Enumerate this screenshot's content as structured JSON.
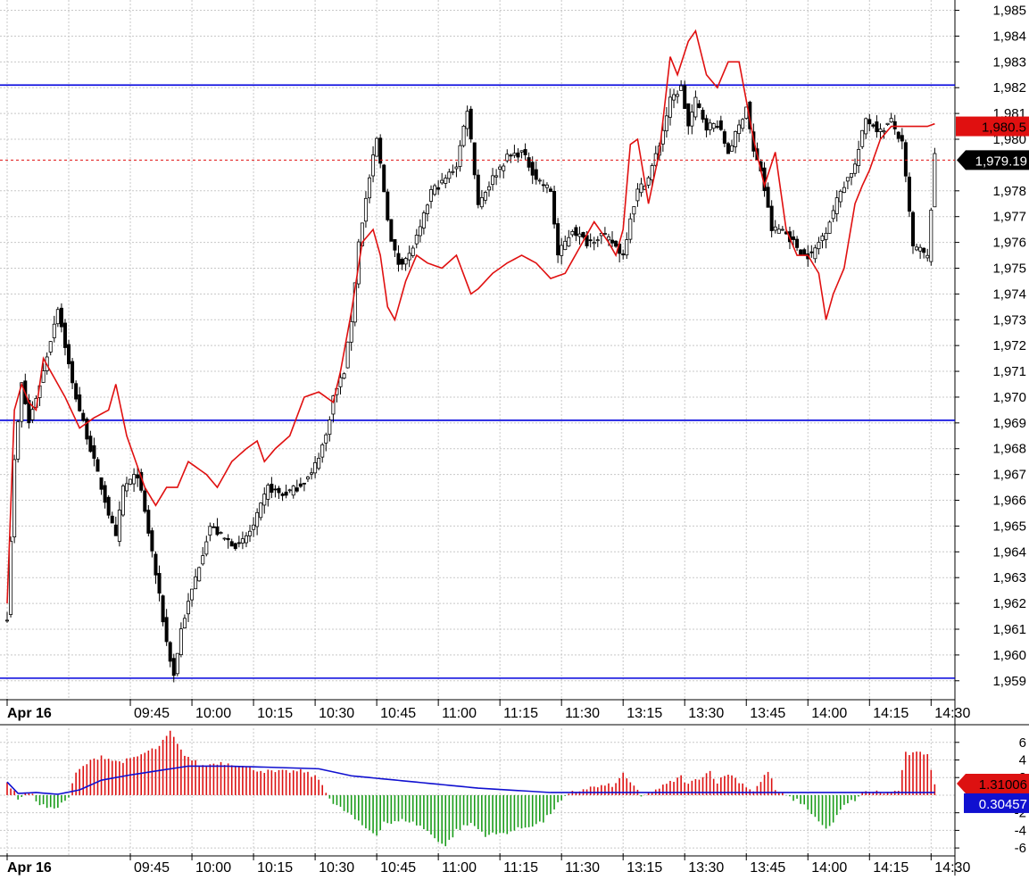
{
  "chart_data": [
    {
      "type": "candlestick",
      "price_axis": {
        "ticks": [
          "1,985",
          "1,984",
          "1,983",
          "1,982",
          "1,981",
          "1,980",
          "1,978",
          "1,977",
          "1,976",
          "1,975",
          "1,974",
          "1,973",
          "1,972",
          "1,971",
          "1,970",
          "1,969",
          "1,968",
          "1,967",
          "1,966",
          "1,965",
          "1,964",
          "1,963",
          "1,962",
          "1,961",
          "1,960",
          "1,959"
        ],
        "tick_values": [
          1985,
          1984,
          1983,
          1982,
          1981,
          1980,
          1978,
          1977,
          1976,
          1975,
          1974,
          1973,
          1972,
          1971,
          1970,
          1969,
          1968,
          1967,
          1966,
          1965,
          1964,
          1963,
          1962,
          1961,
          1960,
          1959
        ],
        "range": [
          1958.3,
          1985.4
        ],
        "gridlines": true,
        "position": "right"
      },
      "time_axis": {
        "labels": [
          "Apr 16",
          "09:45",
          "10:00",
          "10:15",
          "10:30",
          "10:45",
          "11:00",
          "11:15",
          "11:30",
          "13:15",
          "13:30",
          "13:45",
          "14:00",
          "14:15",
          "14:30"
        ],
        "bar_index": [
          0,
          34,
          51,
          68,
          85,
          102,
          119,
          136,
          153,
          170,
          187,
          204,
          221,
          238,
          255
        ],
        "first_label_bold": true
      },
      "horizontal_lines": [
        {
          "value": 1982.1,
          "color": "#0000dd"
        },
        {
          "value": 1969.1,
          "color": "#0000dd"
        },
        {
          "value": 1959.1,
          "color": "#0000dd"
        }
      ],
      "last_price": {
        "label": "1,979.19",
        "value": 1979.19,
        "line": "dashed",
        "color": "#e01010",
        "badge_color": "#000000"
      },
      "ma_last": {
        "label": "1,980.5",
        "value": 1980.5,
        "color": "#e01010"
      },
      "price_keypoints": [
        [
          0,
          1961.5
        ],
        [
          2,
          1967.5
        ],
        [
          4,
          1970.5
        ],
        [
          6,
          1969
        ],
        [
          10,
          1971
        ],
        [
          14,
          1973.5
        ],
        [
          16,
          1972
        ],
        [
          18,
          1970.5
        ],
        [
          20,
          1969.5
        ],
        [
          22,
          1968.5
        ],
        [
          26,
          1966.5
        ],
        [
          30,
          1964.5
        ],
        [
          32,
          1966.5
        ],
        [
          36,
          1967
        ],
        [
          40,
          1964
        ],
        [
          44,
          1960.5
        ],
        [
          46,
          1959.2
        ],
        [
          48,
          1961
        ],
        [
          52,
          1963
        ],
        [
          56,
          1965
        ],
        [
          60,
          1964.5
        ],
        [
          64,
          1964.2
        ],
        [
          68,
          1965
        ],
        [
          72,
          1966.5
        ],
        [
          76,
          1966.2
        ],
        [
          80,
          1966.5
        ],
        [
          84,
          1967
        ],
        [
          88,
          1968.5
        ],
        [
          90,
          1970
        ],
        [
          93,
          1971
        ],
        [
          95,
          1973
        ],
        [
          97,
          1976
        ],
        [
          100,
          1978.5
        ],
        [
          102,
          1980
        ],
        [
          104,
          1978
        ],
        [
          106,
          1976
        ],
        [
          108,
          1975.2
        ],
        [
          111,
          1975.5
        ],
        [
          114,
          1976.5
        ],
        [
          117,
          1978
        ],
        [
          120,
          1978.3
        ],
        [
          124,
          1979
        ],
        [
          127,
          1981.2
        ],
        [
          130,
          1977.5
        ],
        [
          134,
          1978.5
        ],
        [
          138,
          1979.3
        ],
        [
          142,
          1979.5
        ],
        [
          146,
          1978.5
        ],
        [
          150,
          1978
        ],
        [
          152,
          1975.5
        ],
        [
          156,
          1976.5
        ],
        [
          160,
          1976
        ],
        [
          164,
          1976.3
        ],
        [
          167,
          1976
        ],
        [
          170,
          1975.5
        ],
        [
          172,
          1977
        ],
        [
          174,
          1978
        ],
        [
          177,
          1978.5
        ],
        [
          180,
          1979.8
        ],
        [
          183,
          1981.5
        ],
        [
          186,
          1982
        ],
        [
          188,
          1980.5
        ],
        [
          190,
          1981.5
        ],
        [
          193,
          1980.5
        ],
        [
          196,
          1980.6
        ],
        [
          199,
          1979.5
        ],
        [
          202,
          1980.5
        ],
        [
          204,
          1981.3
        ],
        [
          206,
          1979.5
        ],
        [
          208,
          1978.8
        ],
        [
          211,
          1976.5
        ],
        [
          214,
          1976.5
        ],
        [
          217,
          1976
        ],
        [
          220,
          1975.5
        ],
        [
          222,
          1975.5
        ],
        [
          226,
          1976.5
        ],
        [
          230,
          1978
        ],
        [
          234,
          1979
        ],
        [
          237,
          1980.8
        ],
        [
          241,
          1980.3
        ],
        [
          244,
          1980.7
        ],
        [
          247,
          1979.8
        ],
        [
          250,
          1975.8
        ],
        [
          252,
          1975.7
        ],
        [
          254,
          1975.4
        ],
        [
          256,
          1979.3
        ]
      ],
      "moving_average_keypoints": [
        [
          0,
          1962
        ],
        [
          2,
          1969.5
        ],
        [
          4,
          1970.5
        ],
        [
          6,
          1969.8
        ],
        [
          8,
          1969.5
        ],
        [
          10,
          1971.5
        ],
        [
          12,
          1971
        ],
        [
          16,
          1970
        ],
        [
          20,
          1968.8
        ],
        [
          24,
          1969.2
        ],
        [
          28,
          1969.5
        ],
        [
          30,
          1970.5
        ],
        [
          33,
          1968.5
        ],
        [
          38,
          1966.5
        ],
        [
          41,
          1965.8
        ],
        [
          44,
          1966.5
        ],
        [
          47,
          1966.5
        ],
        [
          50,
          1967.5
        ],
        [
          52,
          1967.3
        ],
        [
          55,
          1967
        ],
        [
          58,
          1966.5
        ],
        [
          62,
          1967.5
        ],
        [
          66,
          1968
        ],
        [
          69,
          1968.3
        ],
        [
          71,
          1967.5
        ],
        [
          74,
          1968
        ],
        [
          78,
          1968.5
        ],
        [
          82,
          1970
        ],
        [
          86,
          1970.2
        ],
        [
          90,
          1969.8
        ],
        [
          92,
          1971
        ],
        [
          95,
          1973.3
        ],
        [
          98,
          1976
        ],
        [
          101,
          1976.5
        ],
        [
          103,
          1975.5
        ],
        [
          105,
          1973.5
        ],
        [
          107,
          1973
        ],
        [
          110,
          1974.5
        ],
        [
          113,
          1975.5
        ],
        [
          116,
          1975.2
        ],
        [
          120,
          1975
        ],
        [
          124,
          1975.5
        ],
        [
          128,
          1974
        ],
        [
          130,
          1974.2
        ],
        [
          134,
          1974.8
        ],
        [
          138,
          1975.2
        ],
        [
          142,
          1975.5
        ],
        [
          146,
          1975.2
        ],
        [
          150,
          1974.6
        ],
        [
          154,
          1974.8
        ],
        [
          158,
          1975.8
        ],
        [
          162,
          1976.8
        ],
        [
          166,
          1976
        ],
        [
          168,
          1975.5
        ],
        [
          170,
          1976.5
        ],
        [
          172,
          1979.8
        ],
        [
          174,
          1980
        ],
        [
          177,
          1977.5
        ],
        [
          180,
          1979.5
        ],
        [
          183,
          1983.2
        ],
        [
          185,
          1982.5
        ],
        [
          188,
          1983.8
        ],
        [
          190,
          1984.2
        ],
        [
          193,
          1982.5
        ],
        [
          196,
          1982
        ],
        [
          199,
          1983
        ],
        [
          202,
          1983
        ],
        [
          204,
          1981.5
        ],
        [
          206,
          1980
        ],
        [
          209,
          1978.2
        ],
        [
          212,
          1979.5
        ],
        [
          215,
          1976.5
        ],
        [
          218,
          1975.5
        ],
        [
          221,
          1975.5
        ],
        [
          224,
          1974.8
        ],
        [
          226,
          1973
        ],
        [
          228,
          1974
        ],
        [
          231,
          1975
        ],
        [
          234,
          1977.5
        ],
        [
          236,
          1978.2
        ],
        [
          238,
          1978.8
        ],
        [
          241,
          1980
        ],
        [
          244,
          1980.5
        ],
        [
          247,
          1980.5
        ],
        [
          250,
          1980.5
        ],
        [
          254,
          1980.5
        ],
        [
          256,
          1980.6
        ]
      ],
      "bar_count": 257
    },
    {
      "type": "histogram",
      "axis": {
        "ticks": [
          "6",
          "4",
          "2",
          "-2",
          "-4",
          "-6"
        ],
        "tick_values": [
          6,
          4,
          2,
          -2,
          -4,
          -6
        ],
        "range": [
          -6.8,
          7.6
        ],
        "position": "right"
      },
      "positive_color": "#dd1111",
      "negative_color": "#1a9c1a",
      "signal_color": "#1010d0",
      "histogram_label": "1.31006",
      "histogram_last": 1.31006,
      "signal_label": "0.30457",
      "signal_last": 0.30457,
      "histogram_keypoints": [
        [
          0,
          1.5
        ],
        [
          3,
          -0.3
        ],
        [
          6,
          0.4
        ],
        [
          9,
          -1
        ],
        [
          12,
          -1.6
        ],
        [
          15,
          -1
        ],
        [
          17,
          -0.2
        ],
        [
          19,
          2.5
        ],
        [
          22,
          3.6
        ],
        [
          26,
          4.5
        ],
        [
          30,
          3.8
        ],
        [
          34,
          4
        ],
        [
          38,
          4.8
        ],
        [
          42,
          5.5
        ],
        [
          45,
          7.2
        ],
        [
          48,
          5
        ],
        [
          51,
          4
        ],
        [
          54,
          3.3
        ],
        [
          58,
          3.7
        ],
        [
          62,
          3.6
        ],
        [
          66,
          3.2
        ],
        [
          70,
          2.8
        ],
        [
          74,
          2.6
        ],
        [
          78,
          2.7
        ],
        [
          82,
          2.7
        ],
        [
          86,
          1.8
        ],
        [
          88,
          0.5
        ],
        [
          90,
          -1
        ],
        [
          94,
          -2
        ],
        [
          98,
          -3.5
        ],
        [
          102,
          -4.5
        ],
        [
          104,
          -3
        ],
        [
          106,
          -3.2
        ],
        [
          110,
          -2.8
        ],
        [
          114,
          -3.5
        ],
        [
          118,
          -4.8
        ],
        [
          121,
          -5.8
        ],
        [
          124,
          -4
        ],
        [
          128,
          -3.2
        ],
        [
          132,
          -4.5
        ],
        [
          136,
          -4.4
        ],
        [
          140,
          -4
        ],
        [
          144,
          -3.5
        ],
        [
          148,
          -3
        ],
        [
          150,
          -2
        ],
        [
          152,
          -1
        ],
        [
          154,
          -0.3
        ],
        [
          156,
          0.3
        ],
        [
          160,
          0.8
        ],
        [
          164,
          1
        ],
        [
          168,
          1.2
        ],
        [
          170,
          2.5
        ],
        [
          172,
          1.5
        ],
        [
          175,
          -0.2
        ],
        [
          178,
          0.4
        ],
        [
          182,
          1.2
        ],
        [
          186,
          2.1
        ],
        [
          188,
          1.2
        ],
        [
          191,
          2
        ],
        [
          194,
          2.7
        ],
        [
          196,
          1.5
        ],
        [
          199,
          2.5
        ],
        [
          202,
          1.6
        ],
        [
          204,
          1
        ],
        [
          206,
          0.5
        ],
        [
          208,
          1.5
        ],
        [
          210,
          2.8
        ],
        [
          212,
          0.6
        ],
        [
          214,
          0.1
        ],
        [
          216,
          -0.3
        ],
        [
          219,
          -0.8
        ],
        [
          222,
          -2
        ],
        [
          225,
          -3.5
        ],
        [
          227,
          -3.7
        ],
        [
          229,
          -2.4
        ],
        [
          231,
          -1.2
        ],
        [
          234,
          -0.5
        ],
        [
          236,
          0.2
        ],
        [
          238,
          0.5
        ],
        [
          241,
          0.3
        ],
        [
          244,
          0.3
        ],
        [
          246,
          0.6
        ],
        [
          248,
          4.7
        ],
        [
          250,
          4.7
        ],
        [
          254,
          4.8
        ],
        [
          256,
          1.31
        ]
      ],
      "signal_keypoints": [
        [
          0,
          1.5
        ],
        [
          3,
          0.2
        ],
        [
          8,
          0.3
        ],
        [
          14,
          0.1
        ],
        [
          20,
          0.6
        ],
        [
          26,
          1.7
        ],
        [
          34,
          2.3
        ],
        [
          42,
          2.8
        ],
        [
          50,
          3.3
        ],
        [
          60,
          3.3
        ],
        [
          70,
          3.2
        ],
        [
          86,
          3
        ],
        [
          95,
          2.2
        ],
        [
          110,
          1.6
        ],
        [
          130,
          0.8
        ],
        [
          150,
          0.3
        ],
        [
          175,
          0.3
        ],
        [
          200,
          0.3
        ],
        [
          230,
          0.3
        ],
        [
          256,
          0.3
        ]
      ]
    }
  ]
}
